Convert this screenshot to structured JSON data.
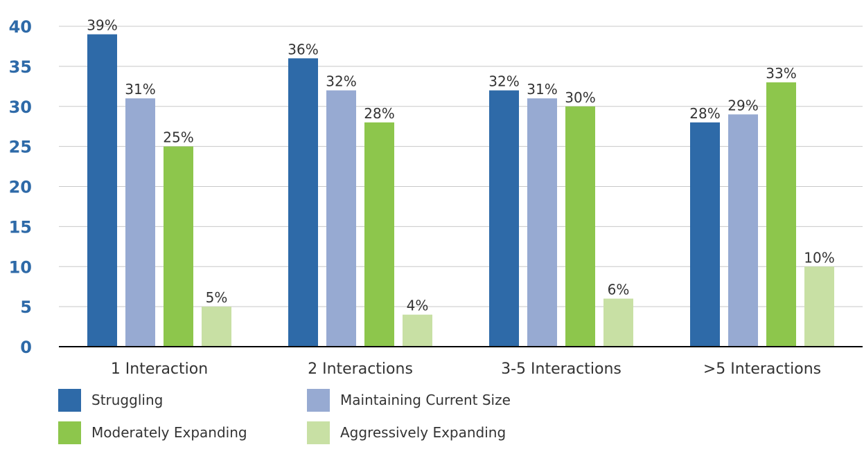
{
  "chart_data": {
    "type": "bar",
    "title": "",
    "xlabel": "",
    "ylabel": "",
    "ylim": [
      0,
      40
    ],
    "yticks": [
      0,
      5,
      10,
      15,
      20,
      25,
      30,
      35,
      40
    ],
    "grid": true,
    "legend_position": "bottom-left",
    "categories": [
      "1 Interaction",
      "2 Interactions",
      "3-5 Interactions",
      ">5 Interactions"
    ],
    "series": [
      {
        "name": "Struggling",
        "color": "#2e6aa8",
        "values": [
          39,
          36,
          32,
          28
        ],
        "labels": [
          "39%",
          "36%",
          "32%",
          "28%"
        ]
      },
      {
        "name": "Maintaining Current Size",
        "color": "#97aad2",
        "values": [
          31,
          32,
          31,
          29
        ],
        "labels": [
          "31%",
          "32%",
          "31%",
          "29%"
        ]
      },
      {
        "name": "Moderately Expanding",
        "color": "#8dc64c",
        "values": [
          25,
          28,
          30,
          33
        ],
        "labels": [
          "25%",
          "28%",
          "30%",
          "33%"
        ]
      },
      {
        "name": "Aggressively Expanding",
        "color": "#c8e0a4",
        "values": [
          5,
          4,
          6,
          10
        ],
        "labels": [
          "5%",
          "4%",
          "6%",
          "10%"
        ]
      }
    ]
  }
}
